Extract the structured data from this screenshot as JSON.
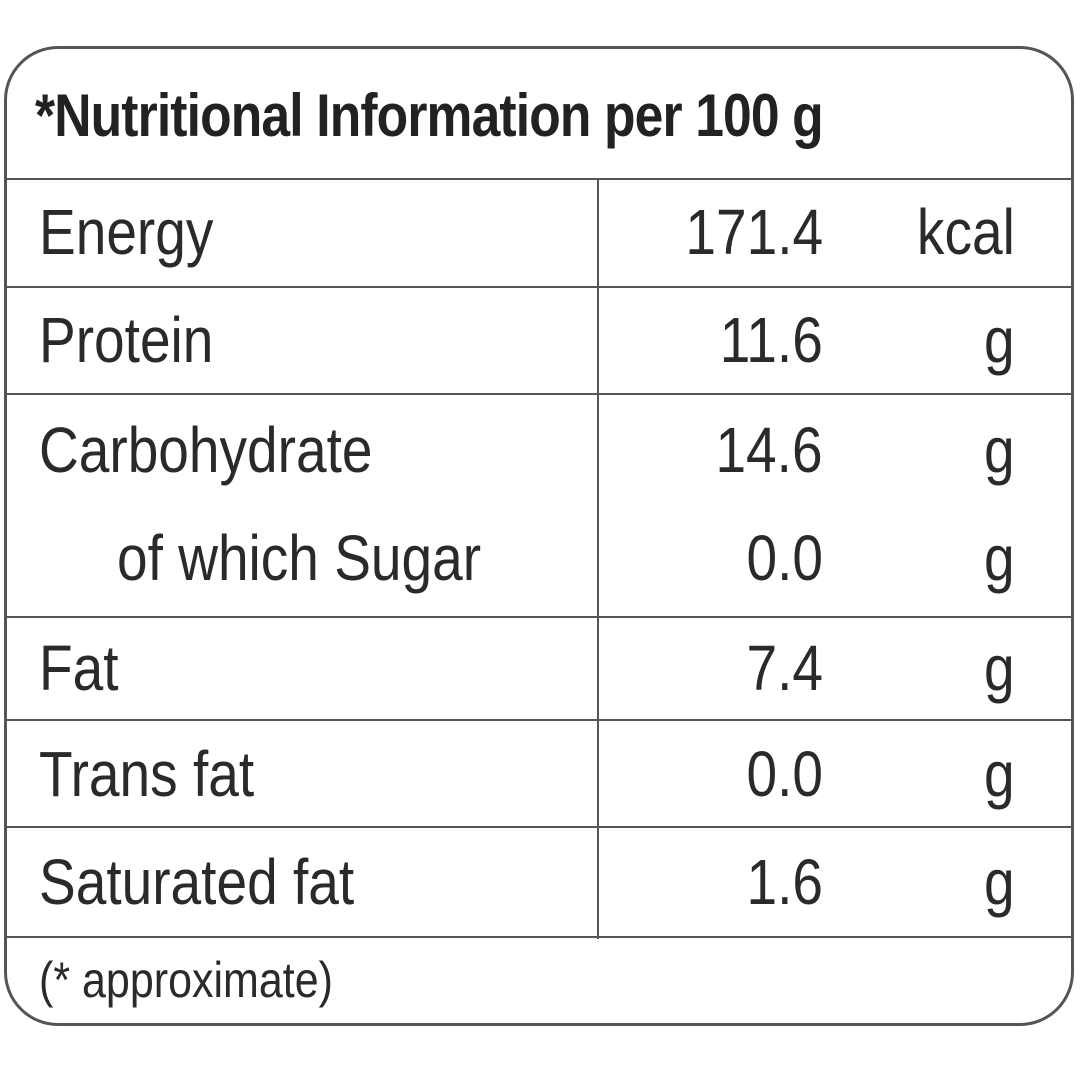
{
  "title": "*Nutritional Information per 100 g",
  "rows": [
    {
      "label": "Energy",
      "value": "171.4",
      "unit": "kcal"
    },
    {
      "label": "Protein",
      "value": "11.6",
      "unit": "g"
    },
    {
      "label": "Carbohydrate",
      "value": "14.6",
      "unit": "g"
    },
    {
      "label": "of which Sugar",
      "value": "0.0",
      "unit": "g"
    },
    {
      "label": "Fat",
      "value": "7.4",
      "unit": "g"
    },
    {
      "label": "Trans fat",
      "value": "0.0",
      "unit": "g"
    },
    {
      "label": "Saturated fat",
      "value": "1.6",
      "unit": "g"
    }
  ],
  "footnote": "(* approximate)"
}
